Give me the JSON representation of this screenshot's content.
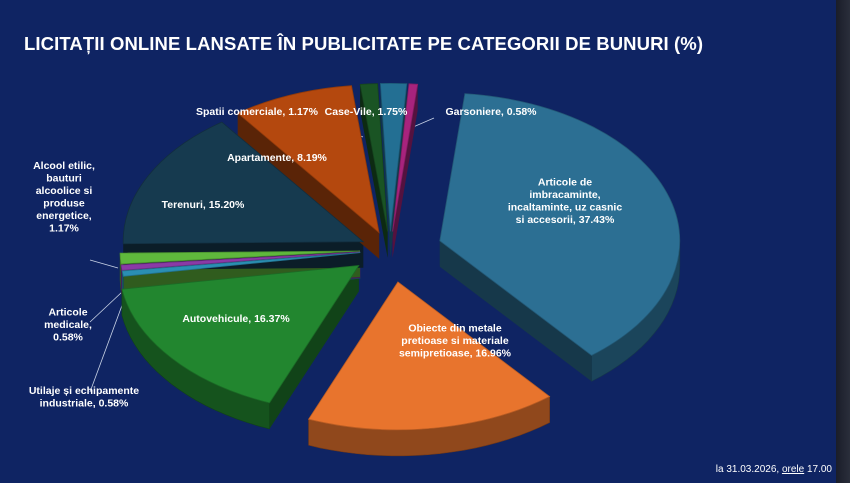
{
  "chart_data": {
    "type": "pie",
    "title": "LICITAȚII ONLINE LANSATE ÎN PUBLICITATE PE CATEGORII DE BUNURI (%)",
    "slices": [
      {
        "name": "Articole de imbracaminte, incaltaminte, uz casnic si accesorii",
        "value": 37.43,
        "label_lines": [
          "Articole de",
          "imbracaminte,",
          "incaltaminte, uz casnic",
          "si accesorii, 37.43%"
        ],
        "color": "#2c6f93"
      },
      {
        "name": "Obiecte din metale pretioase si materiale semipretioase",
        "value": 16.96,
        "label_lines": [
          "Obiecte din metale",
          "pretioase si materiale",
          "semipretioase, 16.96%"
        ],
        "color": "#e8742d"
      },
      {
        "name": "Autovehicule",
        "value": 16.37,
        "label_lines": [
          "Autovehicule, 16.37%"
        ],
        "color": "#22862f"
      },
      {
        "name": "Utilaje și echipamente industriale",
        "value": 0.58,
        "label_lines": [
          "Utilaje și echipamente",
          "industriale, 0.58%"
        ],
        "color": "#2a8fb3"
      },
      {
        "name": "Articole medicale",
        "value": 0.58,
        "label_lines": [
          "Articole",
          "medicale,",
          "0.58%"
        ],
        "color": "#8a3aa6"
      },
      {
        "name": "Alcool etilic, bauturi alcoolice si produse energetice",
        "value": 1.17,
        "label_lines": [
          "Alcool etilic,",
          "bauturi",
          "alcoolice si",
          "produse",
          "energetice,",
          "1.17%"
        ],
        "color": "#5fb83c"
      },
      {
        "name": "Terenuri",
        "value": 15.2,
        "label_lines": [
          "Terenuri, 15.20%"
        ],
        "color": "#163a4f"
      },
      {
        "name": "Apartamente",
        "value": 8.19,
        "label_lines": [
          "Apartamente, 8.19%"
        ],
        "color": "#b4480e"
      },
      {
        "name": "Spatii comerciale",
        "value": 1.17,
        "label_lines": [
          "Spatii comerciale, 1.17%"
        ],
        "color": "#1a5424"
      },
      {
        "name": "Case-Vile",
        "value": 1.75,
        "label_lines": [
          "Case-Vile, 1.75%"
        ],
        "color": "#236f93"
      },
      {
        "name": "Garsoniere",
        "value": 0.58,
        "label_lines": [
          "Garsoniere, 0.58%"
        ],
        "color": "#a8237d"
      }
    ]
  },
  "footnote": {
    "prefix": "la 31.03.2026, ",
    "underlined": "orele",
    "suffix": " 17.00"
  }
}
